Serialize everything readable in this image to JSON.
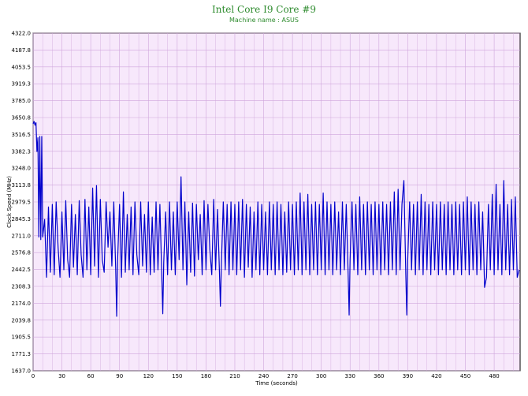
{
  "chart_data": {
    "type": "line",
    "title": "Intel Core I9 Core #9",
    "subtitle": "Machine name : ASUS",
    "xlabel": "Time (seconds)",
    "ylabel": "Clock Speed (MHz)",
    "xlim": [
      0,
      507
    ],
    "ylim": [
      1637.0,
      4322.0
    ],
    "x_ticks": [
      0,
      30,
      60,
      90,
      120,
      150,
      180,
      210,
      240,
      270,
      300,
      330,
      360,
      390,
      420,
      450,
      480
    ],
    "y_ticks": [
      "1637.0",
      "1771.3",
      "1905.5",
      "2039.8",
      "2174.0",
      "2308.3",
      "2442.5",
      "2576.8",
      "2711.0",
      "2845.3",
      "2979.5",
      "3113.8",
      "3248.0",
      "3382.3",
      "3516.5",
      "3650.8",
      "3785.0",
      "3919.3",
      "4053.5",
      "4187.8",
      "4322.0"
    ],
    "grid": true,
    "colors": {
      "title": "#2e8b2e",
      "line": "#0000cc",
      "plot_bg": "#f7e8fb",
      "grid": "#cfa6dc"
    },
    "series": [
      {
        "values": [
          [
            0,
            3600
          ],
          [
            1,
            3620
          ],
          [
            2,
            3590
          ],
          [
            3,
            3610
          ],
          [
            4,
            3380
          ],
          [
            5,
            3490
          ],
          [
            6,
            2700
          ],
          [
            7,
            3500
          ],
          [
            8,
            2680
          ],
          [
            9,
            3500
          ],
          [
            10,
            2700
          ],
          [
            12,
            2840
          ],
          [
            14,
            2380
          ],
          [
            16,
            2940
          ],
          [
            18,
            2420
          ],
          [
            20,
            2960
          ],
          [
            22,
            2400
          ],
          [
            24,
            2980
          ],
          [
            26,
            2620
          ],
          [
            28,
            2380
          ],
          [
            30,
            2900
          ],
          [
            32,
            2440
          ],
          [
            34,
            2990
          ],
          [
            36,
            2520
          ],
          [
            38,
            2380
          ],
          [
            40,
            2960
          ],
          [
            42,
            2460
          ],
          [
            44,
            2880
          ],
          [
            46,
            2400
          ],
          [
            48,
            2990
          ],
          [
            50,
            2560
          ],
          [
            52,
            2380
          ],
          [
            54,
            3000
          ],
          [
            56,
            2440
          ],
          [
            58,
            2940
          ],
          [
            60,
            2400
          ],
          [
            62,
            3090
          ],
          [
            64,
            2470
          ],
          [
            66,
            3110
          ],
          [
            68,
            2380
          ],
          [
            70,
            3000
          ],
          [
            72,
            2520
          ],
          [
            74,
            2420
          ],
          [
            76,
            2980
          ],
          [
            78,
            2620
          ],
          [
            80,
            2900
          ],
          [
            82,
            2470
          ],
          [
            84,
            2980
          ],
          [
            86,
            2440
          ],
          [
            87,
            2070
          ],
          [
            88,
            2520
          ],
          [
            90,
            2960
          ],
          [
            92,
            2380
          ],
          [
            94,
            3060
          ],
          [
            96,
            2420
          ],
          [
            98,
            2880
          ],
          [
            100,
            2440
          ],
          [
            102,
            2940
          ],
          [
            104,
            2400
          ],
          [
            106,
            2980
          ],
          [
            108,
            2560
          ],
          [
            110,
            2400
          ],
          [
            112,
            2980
          ],
          [
            114,
            2470
          ],
          [
            116,
            2880
          ],
          [
            118,
            2420
          ],
          [
            120,
            2980
          ],
          [
            122,
            2400
          ],
          [
            124,
            2860
          ],
          [
            126,
            2420
          ],
          [
            128,
            2980
          ],
          [
            130,
            2440
          ],
          [
            132,
            2960
          ],
          [
            134,
            2380
          ],
          [
            135,
            2090
          ],
          [
            136,
            2500
          ],
          [
            138,
            2900
          ],
          [
            140,
            2400
          ],
          [
            142,
            2980
          ],
          [
            144,
            2440
          ],
          [
            146,
            2900
          ],
          [
            148,
            2400
          ],
          [
            150,
            2980
          ],
          [
            152,
            2520
          ],
          [
            154,
            3180
          ],
          [
            156,
            2440
          ],
          [
            158,
            2980
          ],
          [
            160,
            2320
          ],
          [
            162,
            2900
          ],
          [
            164,
            2420
          ],
          [
            166,
            2970
          ],
          [
            168,
            2390
          ],
          [
            170,
            2960
          ],
          [
            172,
            2520
          ],
          [
            174,
            2880
          ],
          [
            176,
            2400
          ],
          [
            178,
            2990
          ],
          [
            180,
            2440
          ],
          [
            182,
            2960
          ],
          [
            184,
            2600
          ],
          [
            186,
            2400
          ],
          [
            188,
            3000
          ],
          [
            190,
            2440
          ],
          [
            192,
            2920
          ],
          [
            194,
            2420
          ],
          [
            195,
            2150
          ],
          [
            196,
            2480
          ],
          [
            198,
            2980
          ],
          [
            200,
            2440
          ],
          [
            202,
            2960
          ],
          [
            204,
            2400
          ],
          [
            206,
            2980
          ],
          [
            208,
            2440
          ],
          [
            210,
            2960
          ],
          [
            212,
            2400
          ],
          [
            214,
            2980
          ],
          [
            216,
            2440
          ],
          [
            218,
            3000
          ],
          [
            220,
            2380
          ],
          [
            222,
            2960
          ],
          [
            224,
            2460
          ],
          [
            226,
            2940
          ],
          [
            228,
            2380
          ],
          [
            230,
            2900
          ],
          [
            232,
            2440
          ],
          [
            234,
            2980
          ],
          [
            236,
            2400
          ],
          [
            238,
            2960
          ],
          [
            240,
            2440
          ],
          [
            242,
            2900
          ],
          [
            244,
            2400
          ],
          [
            246,
            2980
          ],
          [
            248,
            2440
          ],
          [
            250,
            2960
          ],
          [
            252,
            2400
          ],
          [
            254,
            2980
          ],
          [
            256,
            2440
          ],
          [
            258,
            2960
          ],
          [
            260,
            2400
          ],
          [
            262,
            2900
          ],
          [
            264,
            2420
          ],
          [
            266,
            2980
          ],
          [
            268,
            2440
          ],
          [
            270,
            2960
          ],
          [
            272,
            2400
          ],
          [
            274,
            2980
          ],
          [
            276,
            2440
          ],
          [
            278,
            3050
          ],
          [
            280,
            2400
          ],
          [
            282,
            2980
          ],
          [
            284,
            2440
          ],
          [
            286,
            3040
          ],
          [
            288,
            2400
          ],
          [
            290,
            2960
          ],
          [
            292,
            2440
          ],
          [
            294,
            2980
          ],
          [
            296,
            2400
          ],
          [
            298,
            2960
          ],
          [
            300,
            2440
          ],
          [
            302,
            3050
          ],
          [
            304,
            2400
          ],
          [
            306,
            2980
          ],
          [
            308,
            2440
          ],
          [
            310,
            2960
          ],
          [
            312,
            2400
          ],
          [
            314,
            2980
          ],
          [
            316,
            2440
          ],
          [
            318,
            2900
          ],
          [
            320,
            2400
          ],
          [
            322,
            2980
          ],
          [
            324,
            2440
          ],
          [
            326,
            2960
          ],
          [
            328,
            2400
          ],
          [
            329,
            2080
          ],
          [
            330,
            2520
          ],
          [
            332,
            2980
          ],
          [
            334,
            2440
          ],
          [
            336,
            2960
          ],
          [
            338,
            2400
          ],
          [
            340,
            3020
          ],
          [
            342,
            2440
          ],
          [
            344,
            2960
          ],
          [
            346,
            2400
          ],
          [
            348,
            2980
          ],
          [
            350,
            2440
          ],
          [
            352,
            2960
          ],
          [
            354,
            2400
          ],
          [
            356,
            2980
          ],
          [
            358,
            2440
          ],
          [
            360,
            2960
          ],
          [
            362,
            2400
          ],
          [
            364,
            2980
          ],
          [
            366,
            2440
          ],
          [
            368,
            2960
          ],
          [
            370,
            2400
          ],
          [
            372,
            2980
          ],
          [
            374,
            2440
          ],
          [
            376,
            3060
          ],
          [
            378,
            2400
          ],
          [
            380,
            3080
          ],
          [
            382,
            2440
          ],
          [
            384,
            2960
          ],
          [
            386,
            3150
          ],
          [
            388,
            2400
          ],
          [
            389,
            2080
          ],
          [
            390,
            2520
          ],
          [
            392,
            2980
          ],
          [
            394,
            2440
          ],
          [
            396,
            2960
          ],
          [
            398,
            2400
          ],
          [
            400,
            2980
          ],
          [
            402,
            2440
          ],
          [
            404,
            3040
          ],
          [
            406,
            2400
          ],
          [
            408,
            2980
          ],
          [
            410,
            2440
          ],
          [
            412,
            2960
          ],
          [
            414,
            2400
          ],
          [
            416,
            2980
          ],
          [
            418,
            2440
          ],
          [
            420,
            2960
          ],
          [
            422,
            2400
          ],
          [
            424,
            2980
          ],
          [
            426,
            2440
          ],
          [
            428,
            2960
          ],
          [
            430,
            2400
          ],
          [
            432,
            2980
          ],
          [
            434,
            2440
          ],
          [
            436,
            2960
          ],
          [
            438,
            2400
          ],
          [
            440,
            2980
          ],
          [
            442,
            2440
          ],
          [
            444,
            2960
          ],
          [
            446,
            2400
          ],
          [
            448,
            2980
          ],
          [
            450,
            2440
          ],
          [
            452,
            3020
          ],
          [
            454,
            2400
          ],
          [
            456,
            2980
          ],
          [
            458,
            2440
          ],
          [
            460,
            2960
          ],
          [
            462,
            2400
          ],
          [
            464,
            2980
          ],
          [
            466,
            2440
          ],
          [
            468,
            2900
          ],
          [
            470,
            2300
          ],
          [
            472,
            2380
          ],
          [
            474,
            2960
          ],
          [
            476,
            2440
          ],
          [
            478,
            3040
          ],
          [
            480,
            2400
          ],
          [
            482,
            3120
          ],
          [
            484,
            2440
          ],
          [
            486,
            2960
          ],
          [
            488,
            2400
          ],
          [
            490,
            3150
          ],
          [
            492,
            2440
          ],
          [
            494,
            2960
          ],
          [
            496,
            2400
          ],
          [
            498,
            3000
          ],
          [
            500,
            2440
          ],
          [
            502,
            3020
          ],
          [
            504,
            2380
          ],
          [
            506,
            2440
          ]
        ]
      }
    ]
  }
}
